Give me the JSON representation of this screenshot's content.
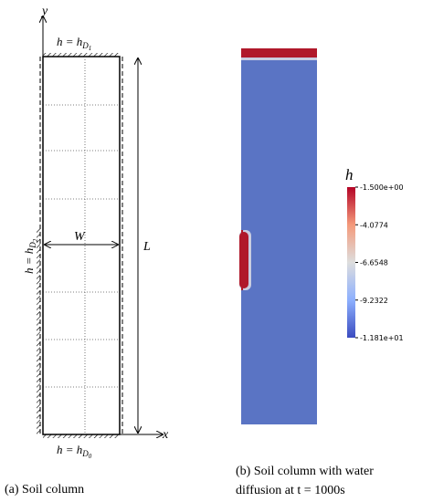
{
  "diagram": {
    "axis_y": "y",
    "axis_x": "x",
    "top_bc": {
      "main": "h = h",
      "sub": "D",
      "subsub": "1"
    },
    "bottom_bc": {
      "main": "h = h",
      "sub": "D",
      "subsub": "0"
    },
    "left_bc": {
      "main": "h = h",
      "sub": "D",
      "subsub": "2"
    },
    "width_label": "W",
    "length_label": "L"
  },
  "colorbar": {
    "title": "h",
    "labels": [
      "-1.500e+00",
      "-4.0774",
      "-6.6548",
      "-9.2322",
      "-1.181e+01"
    ]
  },
  "captions": {
    "a": "(a)   Soil column",
    "b_line1": "(b)   Soil column with water",
    "b_line2": "diffusion at t = 1000s"
  }
}
